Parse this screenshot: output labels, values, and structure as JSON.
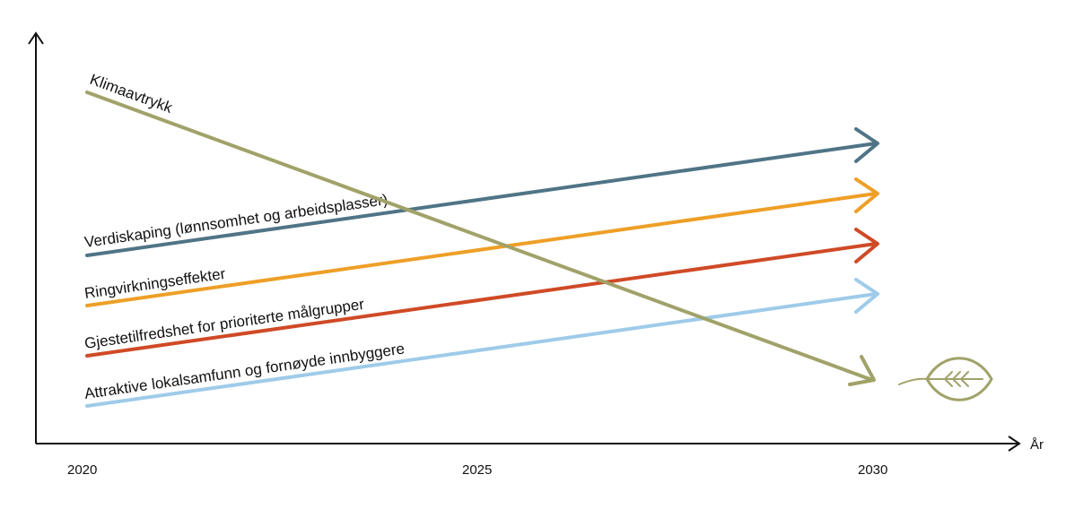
{
  "x_axis": {
    "label": "År",
    "ticks": [
      "2020",
      "2025",
      "2030"
    ]
  },
  "trends": [
    {
      "label": "Klimaavtrykk",
      "direction": "down",
      "color": "#a1a269"
    },
    {
      "label": "Verdiskaping (lønnsomhet og arbeidsplasser)",
      "direction": "up",
      "color": "#4f7486"
    },
    {
      "label": "Ringvirkningseffekter",
      "direction": "up",
      "color": "#ee9f27"
    },
    {
      "label": "Gjestetilfredshet for prioriterte målgrupper",
      "direction": "up",
      "color": "#cf4a26"
    },
    {
      "label": "Attraktive lokalsamfunn og fornøyde innbyggere",
      "direction": "up",
      "color": "#9ecbe9"
    }
  ],
  "icons": {
    "leaf": {
      "name": "leaf-icon",
      "color": "#a1a269"
    }
  }
}
